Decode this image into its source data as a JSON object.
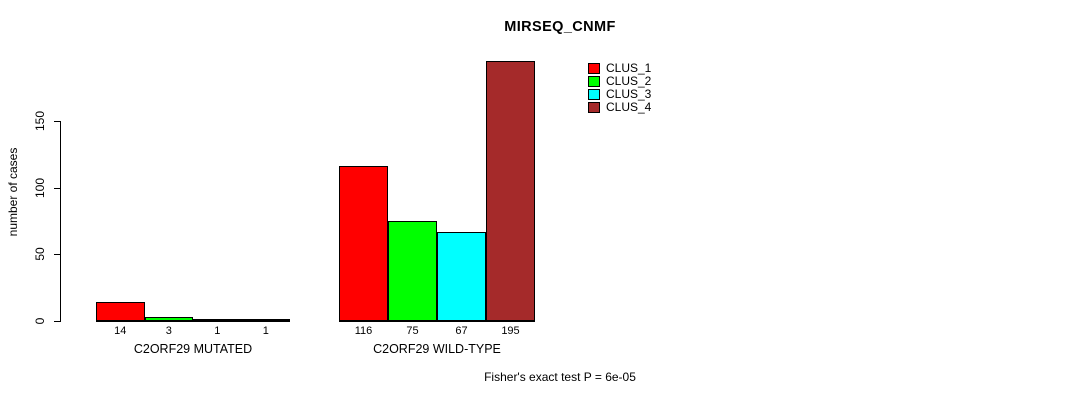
{
  "chart_data": {
    "type": "bar",
    "title": "MIRSEQ_CNMF",
    "ylabel": "number of cases",
    "xlabel": "",
    "ylim": [
      0,
      150
    ],
    "yticks": [
      0,
      50,
      100,
      150
    ],
    "grid": false,
    "legend_position": "top-right",
    "bar_border_color": "#000000",
    "series": [
      {
        "name": "CLUS_1",
        "color": "#ff0000"
      },
      {
        "name": "CLUS_2",
        "color": "#00ff00"
      },
      {
        "name": "CLUS_3",
        "color": "#00ffff"
      },
      {
        "name": "CLUS_4",
        "color": "#a52a2a"
      }
    ],
    "categories": [
      "C2ORF29 MUTATED",
      "C2ORF29 WILD-TYPE"
    ],
    "groups": [
      {
        "label": "C2ORF29 MUTATED",
        "values": [
          14,
          3,
          1,
          1
        ],
        "value_labels": [
          "14",
          "3",
          "1",
          "1"
        ]
      },
      {
        "label": "C2ORF29 WILD-TYPE",
        "values": [
          116,
          75,
          67,
          195
        ],
        "value_labels": [
          "116",
          "75",
          "67",
          "195"
        ]
      }
    ],
    "annotation": "Fisher's exact test P = 6e-05"
  }
}
